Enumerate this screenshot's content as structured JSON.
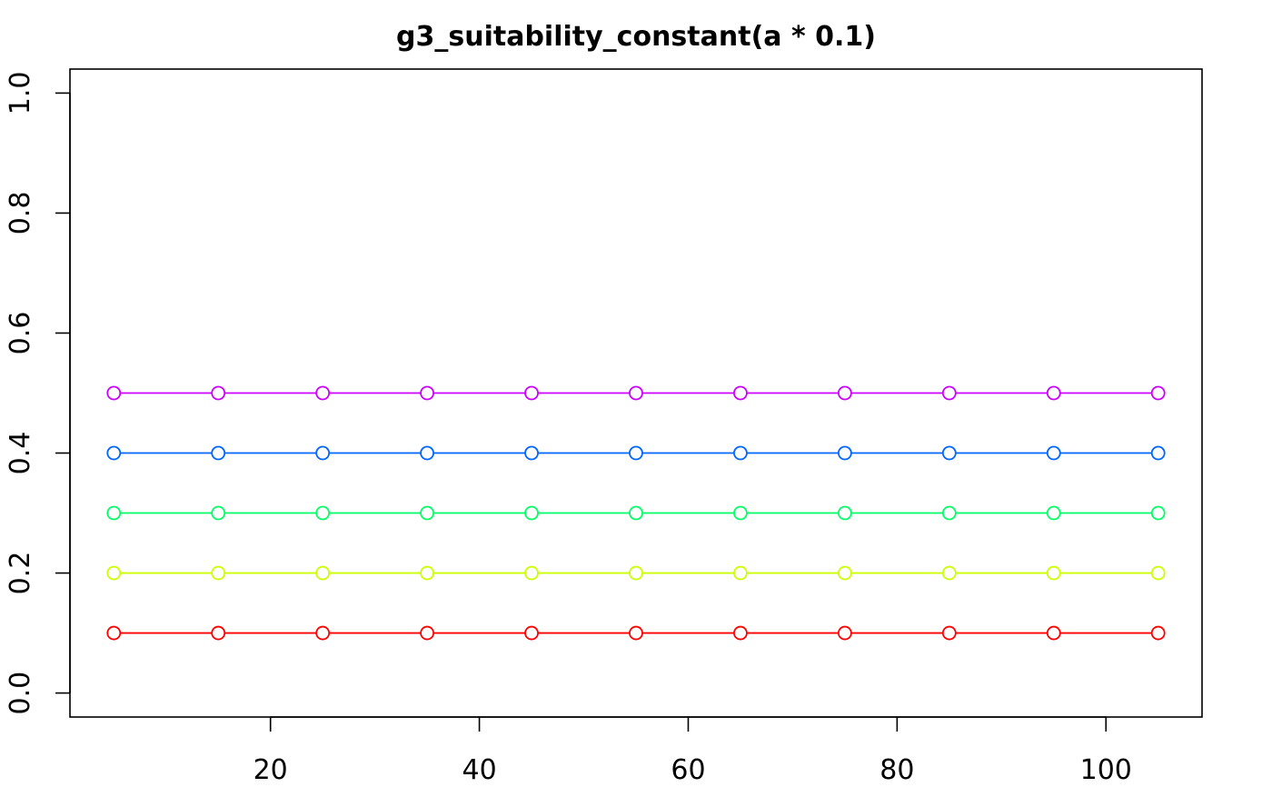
{
  "chart_data": {
    "type": "line",
    "title": "g3_suitability_constant(a * 0.1)",
    "xlabel": "",
    "ylabel": "",
    "xlim": [
      0.8,
      109.2
    ],
    "ylim": [
      -0.04,
      1.04
    ],
    "x_ticks": [
      20,
      40,
      60,
      80,
      100
    ],
    "y_ticks": [
      0.0,
      0.2,
      0.4,
      0.6,
      0.8,
      1.0
    ],
    "x_tick_labels": [
      "20",
      "40",
      "60",
      "80",
      "100"
    ],
    "y_tick_labels": [
      "0.0",
      "0.2",
      "0.4",
      "0.6",
      "0.8",
      "1.0"
    ],
    "grid": false,
    "legend": "none",
    "x": [
      5,
      15,
      25,
      35,
      45,
      55,
      65,
      75,
      85,
      95,
      105
    ],
    "series": [
      {
        "color": "#ff0000",
        "values": [
          0.1,
          0.1,
          0.1,
          0.1,
          0.1,
          0.1,
          0.1,
          0.1,
          0.1,
          0.1,
          0.1
        ]
      },
      {
        "color": "#ccff00",
        "values": [
          0.2,
          0.2,
          0.2,
          0.2,
          0.2,
          0.2,
          0.2,
          0.2,
          0.2,
          0.2,
          0.2
        ]
      },
      {
        "color": "#00ff66",
        "values": [
          0.3,
          0.3,
          0.3,
          0.3,
          0.3,
          0.3,
          0.3,
          0.3,
          0.3,
          0.3,
          0.3
        ]
      },
      {
        "color": "#0066ff",
        "values": [
          0.4,
          0.4,
          0.4,
          0.4,
          0.4,
          0.4,
          0.4,
          0.4,
          0.4,
          0.4,
          0.4
        ]
      },
      {
        "color": "#cc00ff",
        "values": [
          0.5,
          0.5,
          0.5,
          0.5,
          0.5,
          0.5,
          0.5,
          0.5,
          0.5,
          0.5,
          0.5
        ]
      }
    ]
  }
}
